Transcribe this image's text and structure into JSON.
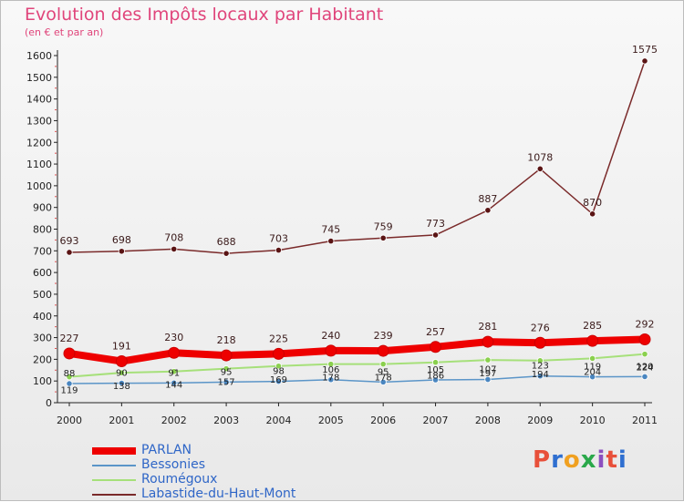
{
  "header": {
    "title": "Evolution des Impôts locaux par Habitant",
    "subtitle": "(en € et par an)"
  },
  "logo": {
    "text": "Proxiti",
    "colors": [
      "#e8503a",
      "#2f6fd0",
      "#f0a020",
      "#2aa84a",
      "#8c4fbf",
      "#e8503a",
      "#2f6fd0"
    ]
  },
  "chart_data": {
    "type": "line",
    "x": [
      "2000",
      "2001",
      "2002",
      "2003",
      "2004",
      "2005",
      "2006",
      "2007",
      "2008",
      "2009",
      "2010",
      "2011"
    ],
    "ylim": [
      0,
      1600
    ],
    "yticks": [
      0,
      100,
      200,
      300,
      400,
      500,
      600,
      700,
      800,
      900,
      1000,
      1100,
      1200,
      1300,
      1400,
      1500,
      1600
    ],
    "grid": false,
    "legend_position": "bottom-left",
    "series": [
      {
        "name": "Labastide-du-Haut-Mont",
        "color": "#7a2a2a",
        "point_color": "#5a1414",
        "width": 1.5,
        "radius": 3.2,
        "values": [
          693,
          698,
          708,
          688,
          703,
          745,
          759,
          773,
          887,
          1078,
          870,
          1575
        ],
        "labels": true,
        "label_dy": -9
      },
      {
        "name": "Roumégoux",
        "color": "#a6e07a",
        "point_color": "#8ad04e",
        "width": 2,
        "radius": 3.2,
        "values": [
          119,
          138,
          144,
          157,
          169,
          178,
          178,
          186,
          197,
          194,
          204,
          224
        ],
        "labels": true,
        "label_dy": 18
      },
      {
        "name": "Bessonies",
        "color": "#5b95c8",
        "point_color": "#4a86c0",
        "width": 1.5,
        "radius": 3.2,
        "values": [
          88,
          90,
          91,
          95,
          98,
          106,
          95,
          105,
          107,
          123,
          119,
          120
        ],
        "labels": true,
        "label_dy": -8
      },
      {
        "name": "PARLAN",
        "color": "#ee0000",
        "point_color": "#ee0000",
        "width": 8,
        "radius": 6,
        "values": [
          227,
          191,
          230,
          218,
          225,
          240,
          239,
          257,
          281,
          276,
          285,
          292
        ],
        "labels": true,
        "label_dy": -13
      }
    ]
  },
  "legend": [
    {
      "label": "PARLAN",
      "color": "#ee0000",
      "thickness": 8
    },
    {
      "label": "Bessonies",
      "color": "#5b95c8",
      "thickness": 2
    },
    {
      "label": "Roumégoux",
      "color": "#a6e07a",
      "thickness": 2
    },
    {
      "label": "Labastide-du-Haut-Mont",
      "color": "#7a2a2a",
      "thickness": 2
    }
  ]
}
